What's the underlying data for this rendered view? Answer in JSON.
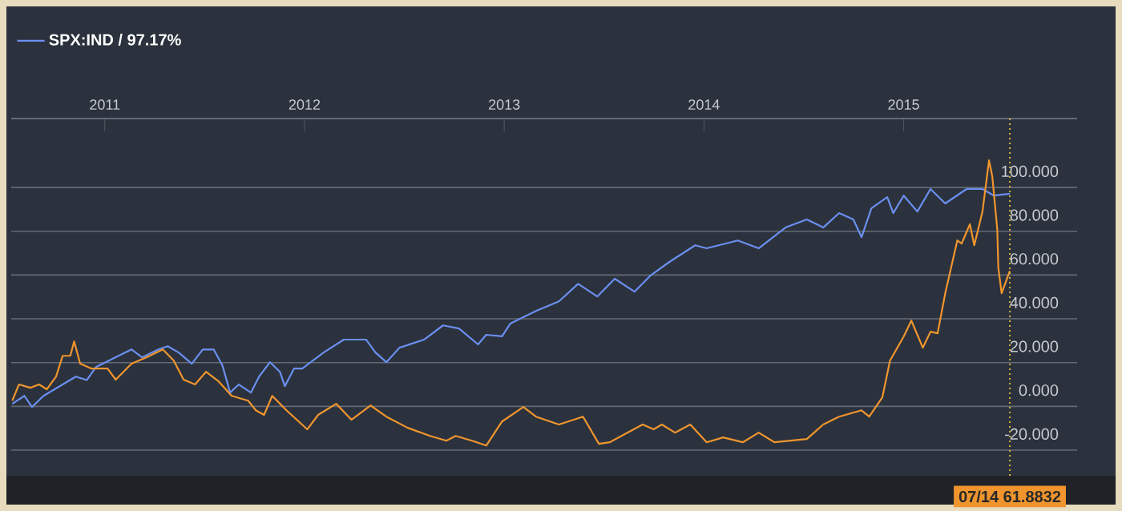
{
  "chart_data": {
    "type": "line",
    "xlim": [
      "2010-07-14",
      "2015-11-14"
    ],
    "ylim": [
      -31.7,
      131.5
    ],
    "xticks": [
      {
        "value": "2011-01-01",
        "label": "2011"
      },
      {
        "value": "2012-01-01",
        "label": "2012"
      },
      {
        "value": "2013-01-01",
        "label": "2013"
      },
      {
        "value": "2014-01-01",
        "label": "2014"
      },
      {
        "value": "2015-01-01",
        "label": "2015"
      }
    ],
    "yticks": [
      {
        "value": -20,
        "label": "-20.000"
      },
      {
        "value": 0,
        "label": "0.000"
      },
      {
        "value": 20,
        "label": "20.000"
      },
      {
        "value": 40,
        "label": "40.000"
      },
      {
        "value": 60,
        "label": "60.000"
      },
      {
        "value": 80,
        "label": "80.000"
      },
      {
        "value": 100,
        "label": "100.000"
      }
    ],
    "grid": "y",
    "legend": "top left",
    "series": [
      {
        "name": "SPX:IND / 97.17%",
        "color": "#6b8ff0",
        "x": [
          "2010-07-16",
          "2010-08-07",
          "2010-08-21",
          "2010-09-11",
          "2010-10-16",
          "2010-11-09",
          "2010-11-29",
          "2010-12-16",
          "2011-01-15",
          "2011-02-19",
          "2011-03-10",
          "2011-04-09",
          "2011-04-26",
          "2011-05-16",
          "2011-06-09",
          "2011-06-29",
          "2011-07-19",
          "2011-08-04",
          "2011-08-18",
          "2011-09-03",
          "2011-09-25",
          "2011-10-10",
          "2011-10-30",
          "2011-11-17",
          "2011-11-26",
          "2011-12-13",
          "2011-12-28",
          "2012-02-05",
          "2012-03-13",
          "2012-04-23",
          "2012-05-10",
          "2012-05-30",
          "2012-06-23",
          "2012-08-07",
          "2012-09-11",
          "2012-10-10",
          "2012-11-14",
          "2012-11-29",
          "2012-12-28",
          "2013-01-12",
          "2013-02-28",
          "2013-04-11",
          "2013-05-16",
          "2013-06-20",
          "2013-07-22",
          "2013-08-27",
          "2013-09-25",
          "2013-10-30",
          "2013-12-16",
          "2014-01-06",
          "2014-03-04",
          "2014-04-11",
          "2014-05-30",
          "2014-07-08",
          "2014-08-07",
          "2014-09-05",
          "2014-10-01",
          "2014-10-16",
          "2014-11-03",
          "2014-12-02",
          "2014-12-13",
          "2015-01-01",
          "2015-01-26",
          "2015-02-19",
          "2015-03-18",
          "2015-04-26",
          "2015-05-25",
          "2015-06-15",
          "2015-07-14"
        ],
        "values": [
          1.2,
          4.8,
          -0.3,
          4.8,
          10,
          13.6,
          12,
          18,
          21.7,
          26,
          22.4,
          26,
          27.5,
          24.6,
          19.5,
          26,
          26,
          18.7,
          6.3,
          10,
          6.3,
          13.6,
          20.2,
          15.8,
          9.2,
          17.3,
          17.3,
          24.6,
          30.5,
          30.5,
          24.6,
          20.2,
          26.8,
          30.5,
          37,
          35.6,
          28.3,
          32.7,
          32,
          37.8,
          43.6,
          48,
          56,
          50.2,
          58.3,
          52.4,
          59.7,
          66,
          73.6,
          72.2,
          75.8,
          72.2,
          81.7,
          85.4,
          81.7,
          88.3,
          85.4,
          77.3,
          90.5,
          95.6,
          88.3,
          96.3,
          89,
          99.3,
          92.7,
          99.3,
          99.3,
          96.3,
          97.17
        ]
      },
      {
        "color": "#f0952e",
        "x": [
          "2010-07-16",
          "2010-07-28",
          "2010-08-18",
          "2010-09-03",
          "2010-09-17",
          "2010-10-04",
          "2010-10-16",
          "2010-10-30",
          "2010-11-06",
          "2010-11-17",
          "2010-12-07",
          "2011-01-06",
          "2011-01-21",
          "2011-02-19",
          "2011-03-18",
          "2011-04-17",
          "2011-05-07",
          "2011-05-25",
          "2011-06-15",
          "2011-07-05",
          "2011-07-28",
          "2011-08-21",
          "2011-09-20",
          "2011-10-04",
          "2011-10-19",
          "2011-11-03",
          "2011-11-29",
          "2012-01-06",
          "2012-01-26",
          "2012-02-28",
          "2012-03-27",
          "2012-05-01",
          "2012-05-30",
          "2012-07-08",
          "2012-08-18",
          "2012-09-17",
          "2012-10-04",
          "2012-11-03",
          "2012-11-29",
          "2012-12-28",
          "2013-02-05",
          "2013-02-28",
          "2013-04-11",
          "2013-05-25",
          "2013-06-23",
          "2013-07-13",
          "2013-09-11",
          "2013-10-01",
          "2013-10-16",
          "2013-11-09",
          "2013-12-07",
          "2014-01-06",
          "2014-02-05",
          "2014-03-13",
          "2014-04-11",
          "2014-05-10",
          "2014-07-08",
          "2014-08-07",
          "2014-09-05",
          "2014-10-16",
          "2014-10-30",
          "2014-11-23",
          "2014-12-07",
          "2015-01-01",
          "2015-01-15",
          "2015-02-05",
          "2015-02-19",
          "2015-03-04",
          "2015-03-18",
          "2015-04-09",
          "2015-04-17",
          "2015-05-02",
          "2015-05-10",
          "2015-05-25",
          "2015-06-06",
          "2015-06-12",
          "2015-06-21",
          "2015-06-23",
          "2015-06-29",
          "2015-07-14"
        ],
        "values": [
          2.6,
          10,
          8.5,
          10,
          7.8,
          13.6,
          23.1,
          23.1,
          29.7,
          19.5,
          17.3,
          17.3,
          12.2,
          19.5,
          22.4,
          26,
          20.9,
          12.2,
          10,
          15.8,
          11.4,
          4.8,
          2.6,
          -1.8,
          -3.9,
          4.8,
          -1.8,
          -10.5,
          -3.9,
          1.2,
          -6.1,
          0.4,
          -4.7,
          -9.8,
          -13.5,
          -15.7,
          -13.5,
          -15.7,
          -17.9,
          -6.9,
          -0.3,
          -4.7,
          -8.3,
          -4.7,
          -17.1,
          -16.4,
          -8.3,
          -10.5,
          -8.3,
          -12,
          -8.3,
          -16.4,
          -14.2,
          -16.4,
          -12,
          -16.4,
          -14.9,
          -8.3,
          -4.7,
          -1.8,
          -4.7,
          4.1,
          20.9,
          31.9,
          39.2,
          26.8,
          34.1,
          33.4,
          51.7,
          75.8,
          74.4,
          83.2,
          73.6,
          89,
          112.4,
          105,
          81,
          63.4,
          51.7,
          61.8832
        ]
      }
    ],
    "ref_lines": [
      {
        "axis": "x",
        "value": "2015-07-14",
        "color": "#d8b040",
        "line_style": "dotted"
      }
    ],
    "annotations": [
      "07/14  61.8832"
    ]
  }
}
